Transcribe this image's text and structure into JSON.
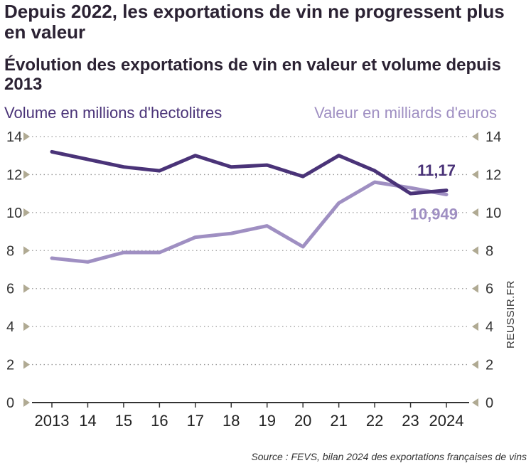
{
  "title": "Depuis 2022, les exportations de vin ne progressent plus en valeur",
  "credit": "REUSSIR.FR",
  "chart_data": {
    "type": "line",
    "title": "Depuis 2022, les exportations de vin ne progressent plus en valeur",
    "subtitle": "Évolution des exportations de vin en valeur et volume depuis 2013",
    "left_axis_label": "Volume en millions d'hectolitres",
    "right_axis_label": "Valeur en milliards d'euros",
    "x_tick_labels": [
      "2013",
      "14",
      "15",
      "16",
      "17",
      "18",
      "19",
      "20",
      "21",
      "22",
      "23",
      "2024"
    ],
    "y_ticks": [
      0,
      2,
      4,
      6,
      8,
      10,
      12,
      14
    ],
    "y_tick_labels": [
      "0",
      "2",
      "4",
      "6",
      "8",
      "10",
      "12",
      "14"
    ],
    "ylim": [
      0,
      14
    ],
    "grid": "dotted horizontal",
    "series": [
      {
        "name": "Volume en millions d'hectolitres",
        "color": "#4a3378",
        "values": [
          13.2,
          12.8,
          12.4,
          12.2,
          13.0,
          12.4,
          12.5,
          11.9,
          13.0,
          12.2,
          11.0,
          11.17
        ],
        "end_label": "11,17"
      },
      {
        "name": "Valeur en milliards d'euros",
        "color": "#9f8fc2",
        "values": [
          7.6,
          7.4,
          7.9,
          7.9,
          8.7,
          8.9,
          9.3,
          8.2,
          10.5,
          11.6,
          11.3,
          10.949
        ],
        "end_label": "10,949"
      }
    ],
    "source": "Source : FEVS, bilan 2024 des exportations françaises de vins"
  }
}
